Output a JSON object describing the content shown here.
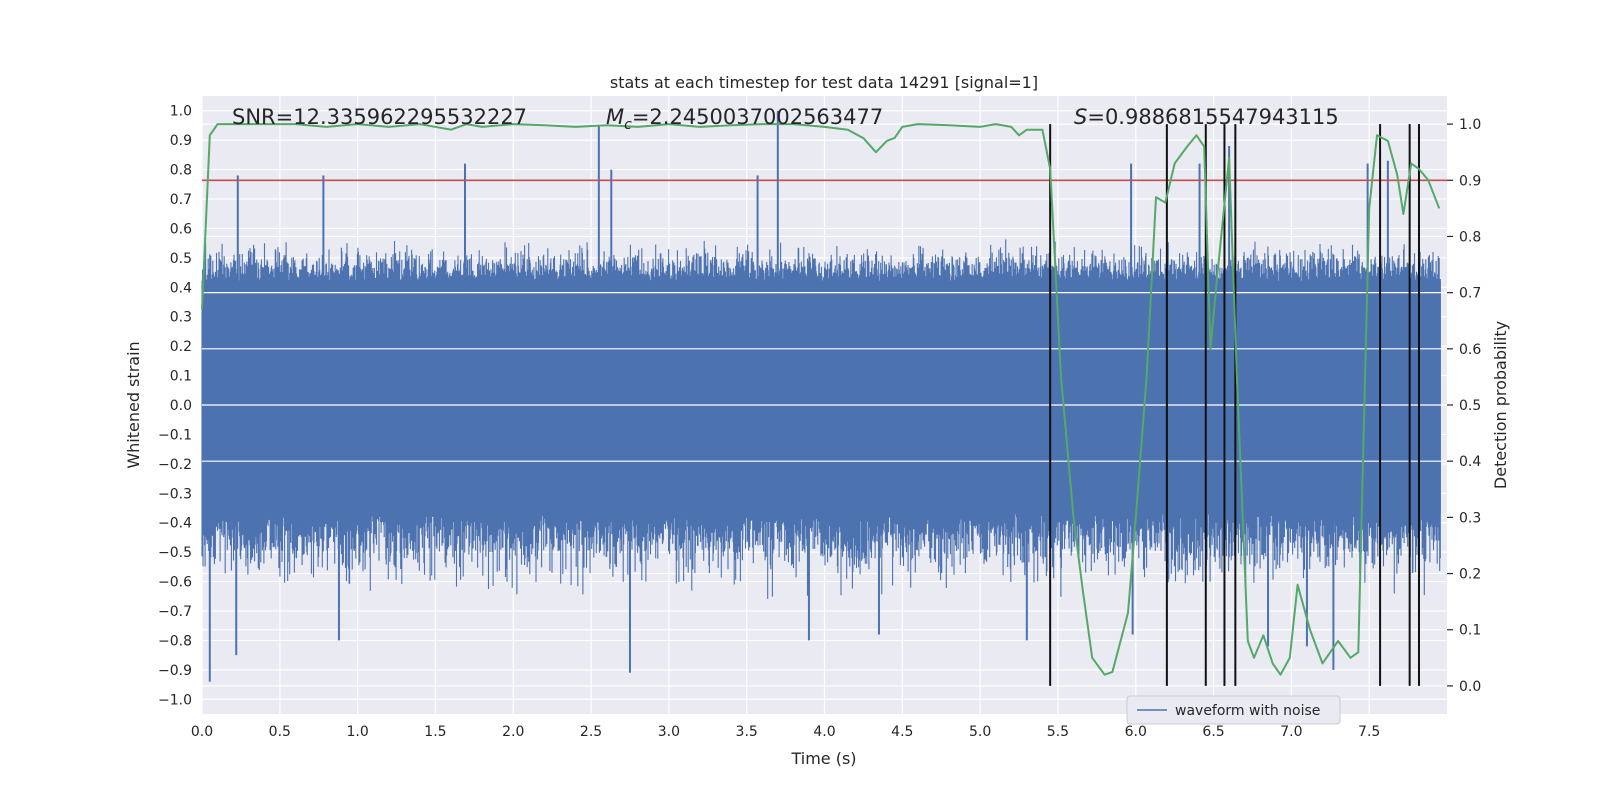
{
  "chart_data": {
    "type": "line",
    "title": "stats at each timestep for test data 14291 [signal=1]",
    "xlabel": "Time (s)",
    "ylabel": "Whitened strain",
    "y2label": "Detection probability",
    "xlim": [
      0.0,
      8.0
    ],
    "ylim": [
      -1.05,
      1.05
    ],
    "y2lim": [
      -0.05,
      1.05
    ],
    "xticks": [
      0.0,
      0.5,
      1.0,
      1.5,
      2.0,
      2.5,
      3.0,
      3.5,
      4.0,
      4.5,
      5.0,
      5.5,
      6.0,
      6.5,
      7.0,
      7.5
    ],
    "xtick_labels": [
      "0.0",
      "0.5",
      "1.0",
      "1.5",
      "2.0",
      "2.5",
      "3.0",
      "3.5",
      "4.0",
      "4.5",
      "5.0",
      "5.5",
      "6.0",
      "6.5",
      "7.0",
      "7.5"
    ],
    "yticks": [
      1.0,
      0.9,
      0.8,
      0.7,
      0.6,
      0.5,
      0.4,
      0.3,
      0.2,
      0.1,
      0.0,
      -0.1,
      -0.2,
      -0.3,
      -0.4,
      -0.5,
      -0.6,
      -0.7,
      -0.8,
      -0.9,
      -1.0
    ],
    "ytick_labels": [
      "1.0",
      "0.9",
      "0.8",
      "0.7",
      "0.6",
      "0.5",
      "0.4",
      "0.3",
      "0.2",
      "0.1",
      "0.0",
      "−0.1",
      "−0.2",
      "−0.3",
      "−0.4",
      "−0.5",
      "−0.6",
      "−0.7",
      "−0.8",
      "−0.9",
      "−1.0"
    ],
    "y2ticks": [
      1.0,
      0.9,
      0.8,
      0.7,
      0.6,
      0.5,
      0.4,
      0.3,
      0.2,
      0.1,
      0.0
    ],
    "y2tick_labels": [
      "1.0",
      "0.9",
      "0.8",
      "0.7",
      "0.6",
      "0.5",
      "0.4",
      "0.3",
      "0.2",
      "0.1",
      "0.0"
    ],
    "annotations": {
      "snr": "SNR=12.335962295532227",
      "mc_symbol": "M",
      "mc_subscript": "c",
      "mc_value": "=2.2450037002563477",
      "s_symbol": "S",
      "s_value": "=0.9886815547943115"
    },
    "legend": {
      "label": "waveform with noise",
      "location": "lower-right"
    },
    "waveform": {
      "name": "waveform with noise",
      "color": "#4c72b0",
      "core_band": [
        -0.37,
        0.42
      ],
      "typical_amplitude": 0.6,
      "peaks": [
        {
          "t": 0.05,
          "v": -0.94
        },
        {
          "t": 0.23,
          "v": 0.78
        },
        {
          "t": 0.22,
          "v": -0.85
        },
        {
          "t": 0.78,
          "v": 0.78
        },
        {
          "t": 0.88,
          "v": -0.8
        },
        {
          "t": 1.69,
          "v": 0.82
        },
        {
          "t": 2.55,
          "v": 0.95
        },
        {
          "t": 2.75,
          "v": -0.91
        },
        {
          "t": 2.63,
          "v": 0.8
        },
        {
          "t": 3.7,
          "v": 1.0
        },
        {
          "t": 3.57,
          "v": 0.78
        },
        {
          "t": 3.9,
          "v": -0.8
        },
        {
          "t": 4.35,
          "v": -0.78
        },
        {
          "t": 5.3,
          "v": -0.8
        },
        {
          "t": 5.97,
          "v": 0.82
        },
        {
          "t": 5.98,
          "v": -0.78
        },
        {
          "t": 6.41,
          "v": 0.82
        },
        {
          "t": 6.6,
          "v": 0.88
        },
        {
          "t": 6.85,
          "v": -0.82
        },
        {
          "t": 7.1,
          "v": -0.82
        },
        {
          "t": 7.27,
          "v": -0.9
        },
        {
          "t": 7.49,
          "v": 0.82
        },
        {
          "t": 7.62,
          "v": 0.83
        }
      ]
    },
    "threshold": {
      "value": 0.9,
      "axis": "y2",
      "color": "#c44e52"
    },
    "probability": {
      "name": "detection probability",
      "color": "#55a868",
      "t": [
        0.0,
        0.05,
        0.1,
        0.2,
        0.4,
        0.6,
        0.8,
        1.0,
        1.2,
        1.4,
        1.6,
        1.7,
        1.8,
        2.0,
        2.2,
        2.4,
        2.6,
        2.8,
        3.0,
        3.2,
        3.4,
        3.6,
        3.8,
        4.0,
        4.15,
        4.25,
        4.33,
        4.4,
        4.45,
        4.5,
        4.6,
        4.8,
        5.0,
        5.1,
        5.2,
        5.25,
        5.3,
        5.4,
        5.45,
        5.52,
        5.6,
        5.66,
        5.72,
        5.8,
        5.85,
        5.95,
        6.0,
        6.07,
        6.13,
        6.19,
        6.25,
        6.33,
        6.39,
        6.44,
        6.48,
        6.52,
        6.6,
        6.65,
        6.72,
        6.76,
        6.82,
        6.88,
        6.93,
        6.99,
        7.04,
        7.12,
        7.2,
        7.25,
        7.3,
        7.38,
        7.43,
        7.5,
        7.55,
        7.62,
        7.68,
        7.72,
        7.77,
        7.82,
        7.88,
        7.95
      ],
      "values": [
        0.67,
        0.98,
        1.0,
        1.0,
        1.0,
        1.0,
        0.995,
        1.0,
        0.995,
        1.0,
        0.99,
        1.0,
        0.995,
        1.0,
        0.998,
        0.995,
        0.998,
        0.995,
        1.0,
        0.995,
        0.998,
        1.0,
        1.0,
        0.995,
        0.99,
        0.975,
        0.95,
        0.97,
        0.975,
        0.995,
        1.0,
        0.998,
        0.995,
        1.0,
        0.995,
        0.98,
        0.99,
        0.99,
        0.92,
        0.55,
        0.3,
        0.17,
        0.05,
        0.02,
        0.025,
        0.13,
        0.3,
        0.55,
        0.87,
        0.86,
        0.93,
        0.96,
        0.98,
        0.96,
        0.6,
        0.72,
        0.94,
        0.55,
        0.08,
        0.05,
        0.09,
        0.04,
        0.02,
        0.05,
        0.18,
        0.1,
        0.04,
        0.06,
        0.08,
        0.05,
        0.06,
        0.85,
        0.98,
        0.97,
        0.91,
        0.84,
        0.93,
        0.92,
        0.9,
        0.85
      ]
    },
    "event_lines": {
      "color": "#111111",
      "times": [
        5.45,
        6.2,
        6.45,
        6.57,
        6.64,
        7.57,
        7.76,
        7.82
      ]
    }
  }
}
